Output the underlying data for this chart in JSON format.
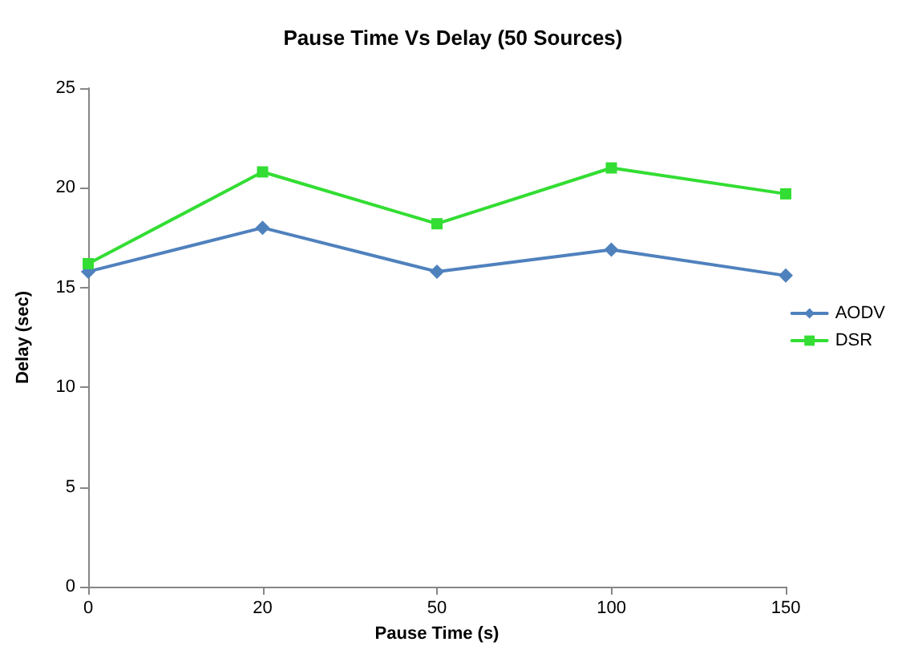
{
  "chart_data": {
    "type": "line",
    "title": "Pause Time Vs Delay (50 Sources)",
    "xlabel": "Pause Time (s)",
    "ylabel": "Delay (sec)",
    "categories": [
      "0",
      "20",
      "50",
      "100",
      "150"
    ],
    "series": [
      {
        "name": "AODV",
        "color": "#4f81bd",
        "marker": "diamond",
        "values": [
          15.8,
          18,
          15.8,
          16.9,
          15.6
        ]
      },
      {
        "name": "DSR",
        "color": "#33dd33",
        "marker": "square",
        "values": [
          16.2,
          20.8,
          18.2,
          21,
          19.7
        ]
      }
    ],
    "ylim": [
      0,
      25
    ],
    "yticks": [
      0,
      5,
      10,
      15,
      20,
      25
    ],
    "grid": false,
    "legend": "right",
    "line_style": "solid"
  }
}
